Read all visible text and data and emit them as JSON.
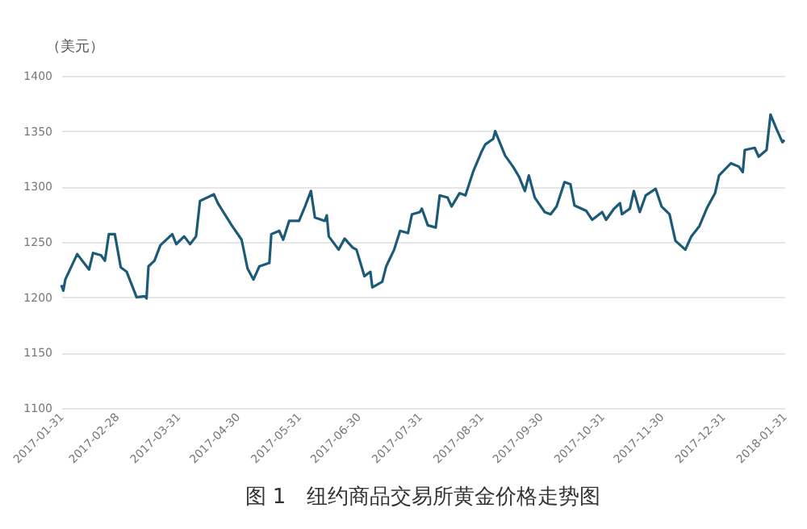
{
  "chart_data": {
    "type": "line",
    "title": "图 1　纽约商品交易所黄金价格走势图",
    "ylabel": "（美元）",
    "x": [
      "2017-01-31",
      "2017-02-01",
      "2017-02-02",
      "2017-02-08",
      "2017-02-14",
      "2017-02-16",
      "2017-02-20",
      "2017-02-22",
      "2017-02-24",
      "2017-02-27",
      "2017-03-02",
      "2017-03-05",
      "2017-03-10",
      "2017-03-14",
      "2017-03-15",
      "2017-03-16",
      "2017-03-19",
      "2017-03-22",
      "2017-03-28",
      "2017-03-30",
      "2017-04-03",
      "2017-04-06",
      "2017-04-09",
      "2017-04-11",
      "2017-04-18",
      "2017-04-20",
      "2017-04-27",
      "2017-05-02",
      "2017-05-05",
      "2017-05-08",
      "2017-05-11",
      "2017-05-16",
      "2017-05-17",
      "2017-05-21",
      "2017-05-23",
      "2017-05-26",
      "2017-05-31",
      "2017-06-03",
      "2017-06-06",
      "2017-06-08",
      "2017-06-13",
      "2017-06-14",
      "2017-06-15",
      "2017-06-20",
      "2017-06-23",
      "2017-06-27",
      "2017-06-29",
      "2017-07-03",
      "2017-07-06",
      "2017-07-07",
      "2017-07-12",
      "2017-07-14",
      "2017-07-18",
      "2017-07-21",
      "2017-07-25",
      "2017-07-27",
      "2017-07-31",
      "2017-08-01",
      "2017-08-04",
      "2017-08-08",
      "2017-08-10",
      "2017-08-14",
      "2017-08-16",
      "2017-08-20",
      "2017-08-23",
      "2017-08-27",
      "2017-08-31",
      "2017-09-02",
      "2017-09-06",
      "2017-09-07",
      "2017-09-12",
      "2017-09-16",
      "2017-09-19",
      "2017-09-22",
      "2017-09-24",
      "2017-09-27",
      "2017-10-02",
      "2017-10-05",
      "2017-10-08",
      "2017-10-12",
      "2017-10-15",
      "2017-10-17",
      "2017-10-23",
      "2017-10-26",
      "2017-10-31",
      "2017-11-02",
      "2017-11-06",
      "2017-11-09",
      "2017-11-10",
      "2017-11-14",
      "2017-11-16",
      "2017-11-19",
      "2017-11-22",
      "2017-11-27",
      "2017-11-30",
      "2017-12-04",
      "2017-12-07",
      "2017-12-12",
      "2017-12-15",
      "2017-12-19",
      "2017-12-23",
      "2017-12-27",
      "2017-12-29",
      "2018-01-04",
      "2018-01-08",
      "2018-01-10",
      "2018-01-11",
      "2018-01-16",
      "2018-01-18",
      "2018-01-22",
      "2018-01-24",
      "2018-01-27",
      "2018-01-30",
      "2018-01-31"
    ],
    "series": [
      {
        "color": "#1d5a78",
        "values": [
          1211,
          1206,
          1216,
          1239,
          1225,
          1240,
          1238,
          1233,
          1257,
          1257,
          1227,
          1223,
          1200,
          1201,
          1199,
          1228,
          1233,
          1247,
          1257,
          1248,
          1255,
          1248,
          1255,
          1287,
          1293,
          1285,
          1265,
          1252,
          1226,
          1216,
          1228,
          1231,
          1257,
          1260,
          1252,
          1269,
          1269,
          1282,
          1296,
          1272,
          1269,
          1274,
          1255,
          1243,
          1253,
          1245,
          1243,
          1219,
          1223,
          1209,
          1214,
          1228,
          1243,
          1260,
          1258,
          1275,
          1277,
          1280,
          1265,
          1263,
          1292,
          1290,
          1282,
          1294,
          1292,
          1314,
          1331,
          1338,
          1343,
          1350,
          1328,
          1318,
          1309,
          1296,
          1310,
          1290,
          1277,
          1275,
          1282,
          1304,
          1302,
          1283,
          1278,
          1270,
          1277,
          1270,
          1280,
          1285,
          1275,
          1280,
          1296,
          1277,
          1292,
          1298,
          1282,
          1275,
          1251,
          1243,
          1255,
          1264,
          1281,
          1294,
          1310,
          1321,
          1318,
          1313,
          1333,
          1335,
          1327,
          1333,
          1365,
          1352,
          1340,
          1342
        ]
      }
    ],
    "xlim": [
      "2017-01-31",
      "2018-01-31"
    ],
    "xticks": [
      "2017-01-31",
      "2017-02-28",
      "2017-03-31",
      "2017-04-30",
      "2017-05-31",
      "2017-06-30",
      "2017-07-31",
      "2017-08-31",
      "2017-09-30",
      "2017-10-31",
      "2017-11-30",
      "2017-12-31",
      "2018-01-31"
    ],
    "ylim": [
      1100,
      1400
    ],
    "yticks": [
      1100,
      1150,
      1200,
      1250,
      1300,
      1350,
      1400
    ],
    "grid": "y",
    "legend": false,
    "line_style": "solid",
    "marker": "none"
  }
}
